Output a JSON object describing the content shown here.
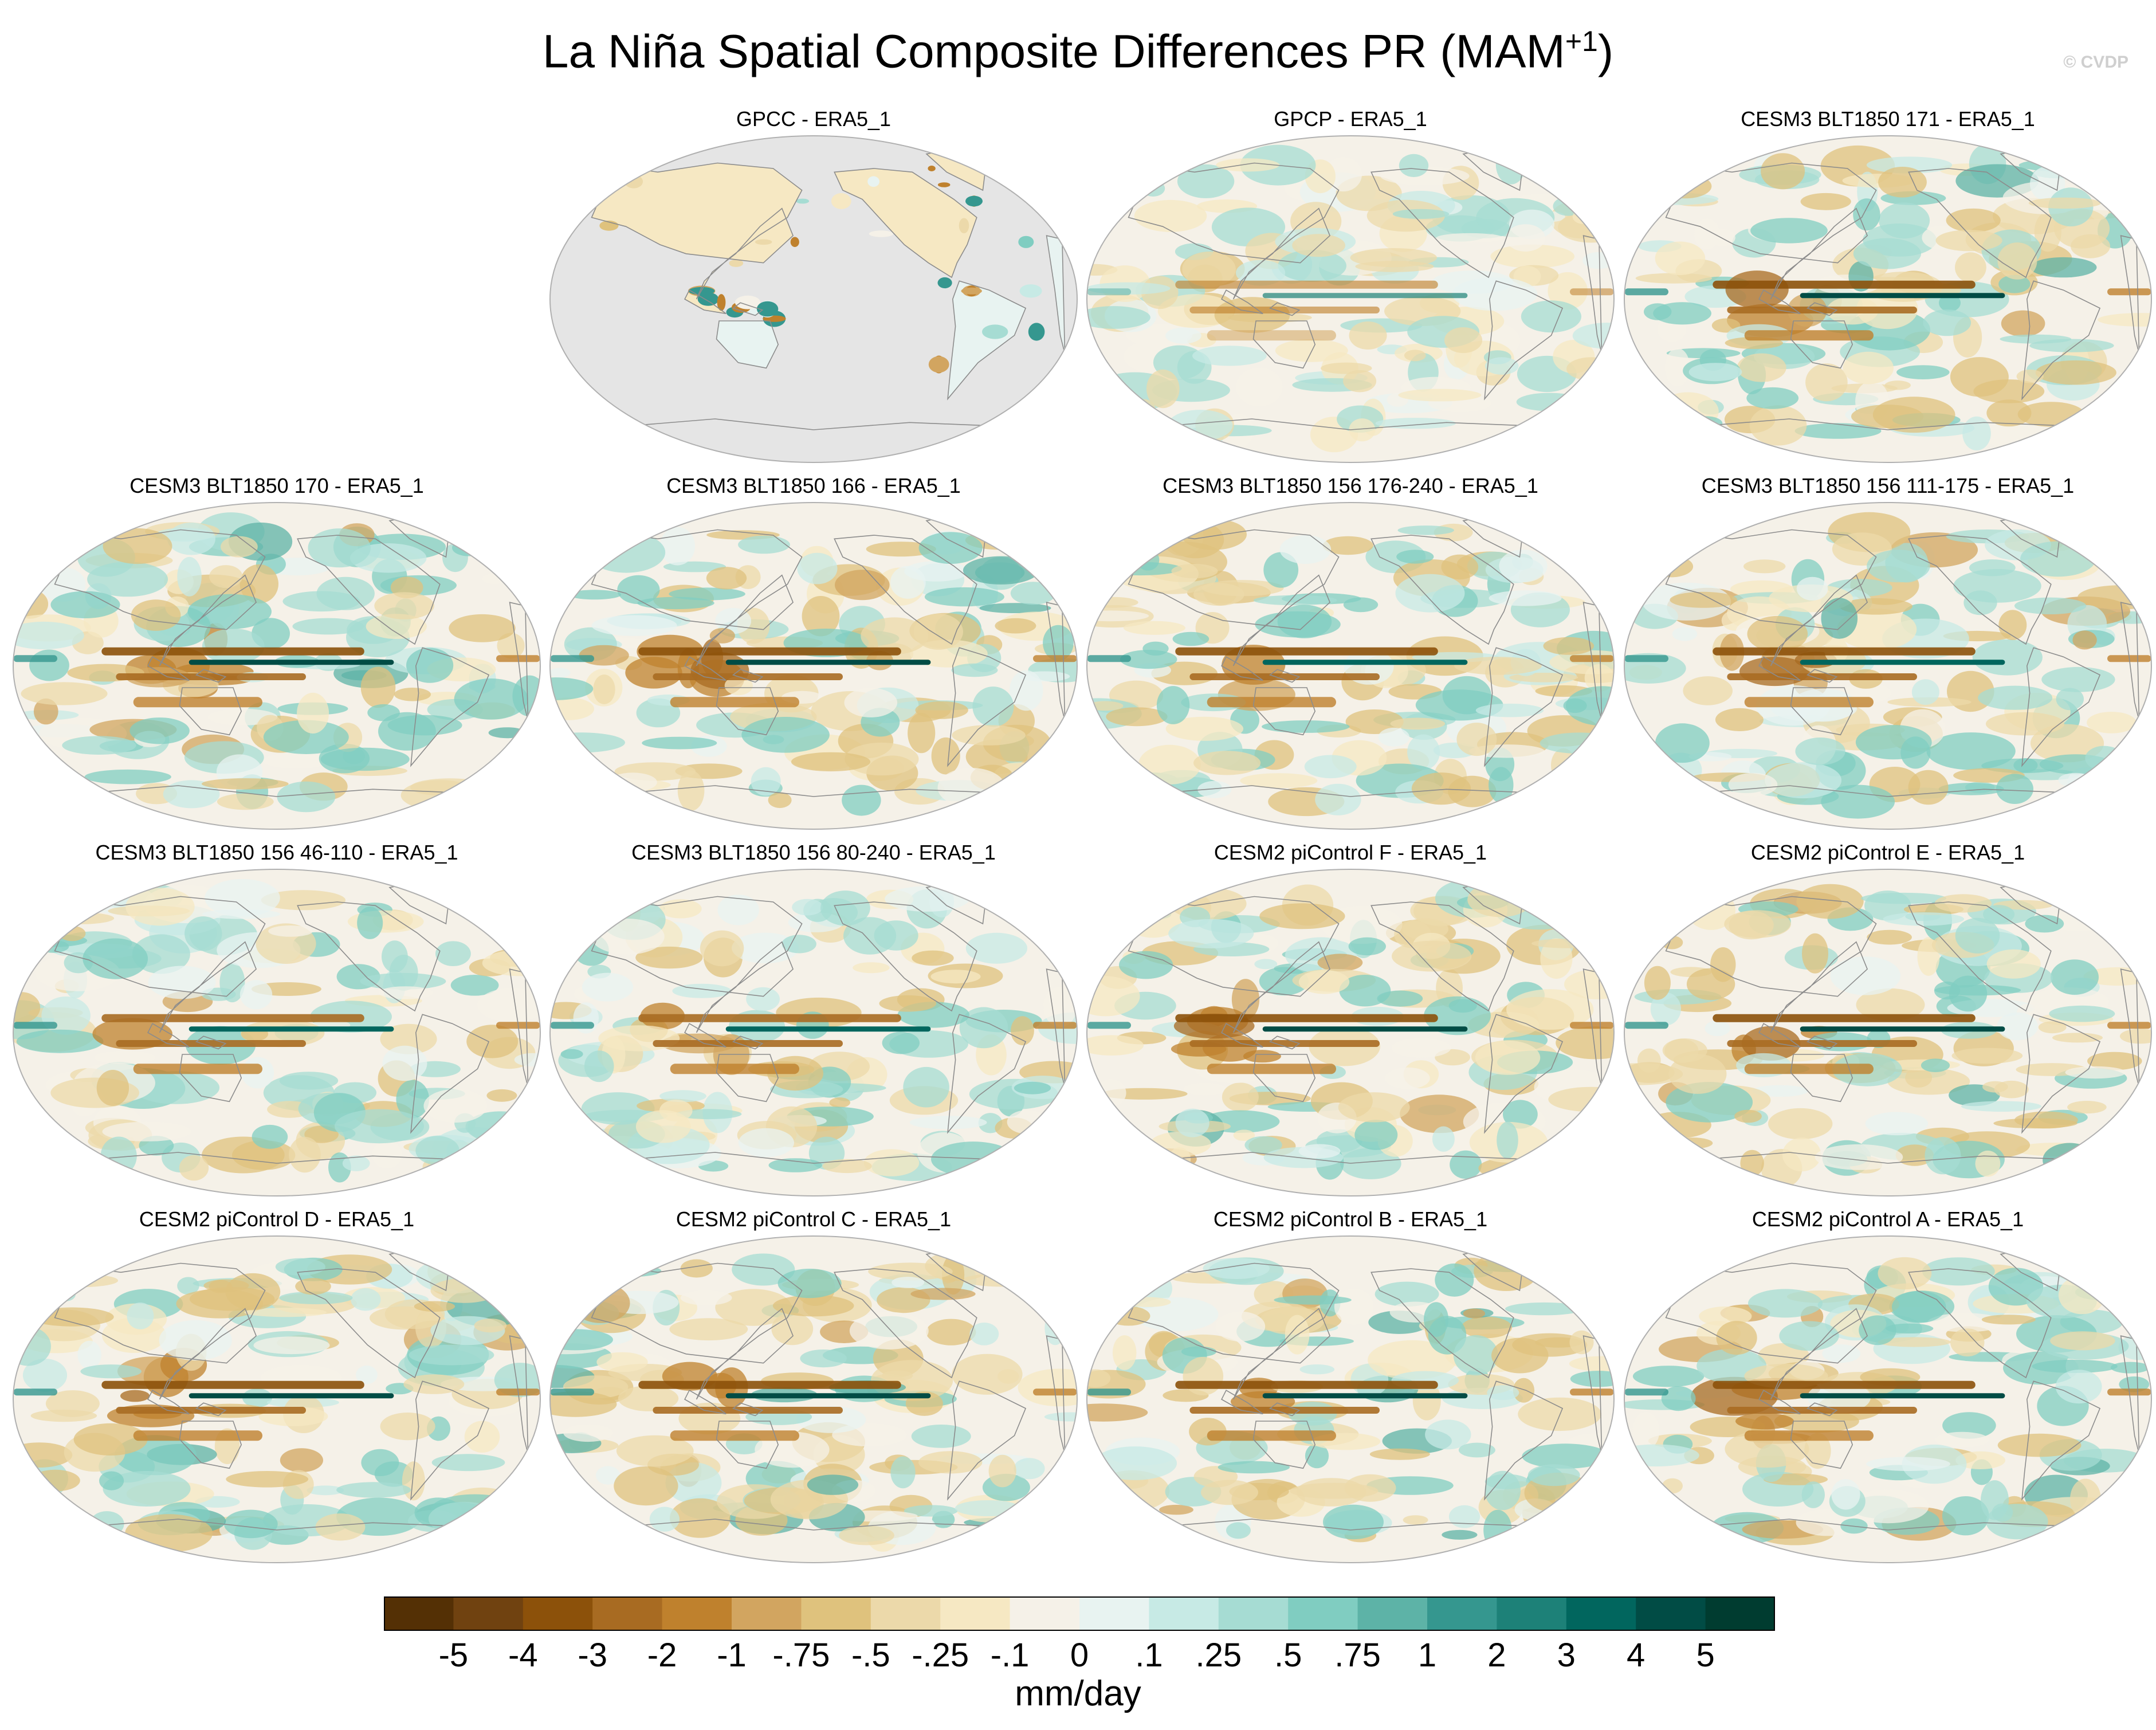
{
  "title": {
    "main": "La Niña Spatial Composite Differences PR (MAM",
    "sup": "+1",
    "close": ")"
  },
  "watermark": "© CVDP",
  "panels": [
    {
      "label": "GPCC - ERA5_1",
      "land_only": true,
      "strength": 0.55
    },
    {
      "label": "GPCP - ERA5_1",
      "land_only": false,
      "strength": 0.6
    },
    {
      "label": "CESM3 BLT1850 171 - ERA5_1",
      "land_only": false,
      "strength": 1.0
    },
    {
      "label": "CESM3 BLT1850 170 - ERA5_1",
      "land_only": false,
      "strength": 1.0
    },
    {
      "label": "CESM3 BLT1850 166 - ERA5_1",
      "land_only": false,
      "strength": 1.0
    },
    {
      "label": "CESM3 BLT1850 156 176-240 - ERA5_1",
      "land_only": false,
      "strength": 0.95
    },
    {
      "label": "CESM3 BLT1850 156 111-175 - ERA5_1",
      "land_only": false,
      "strength": 0.95
    },
    {
      "label": "CESM3 BLT1850 156 46-110 - ERA5_1",
      "land_only": false,
      "strength": 0.9
    },
    {
      "label": "CESM3 BLT1850 156 80-240 - ERA5_1",
      "land_only": false,
      "strength": 0.9
    },
    {
      "label": "CESM2 piControl F - ERA5_1",
      "land_only": false,
      "strength": 1.0
    },
    {
      "label": "CESM2 piControl E - ERA5_1",
      "land_only": false,
      "strength": 1.0
    },
    {
      "label": "CESM2 piControl D - ERA5_1",
      "land_only": false,
      "strength": 1.0
    },
    {
      "label": "CESM2 piControl C - ERA5_1",
      "land_only": false,
      "strength": 1.0
    },
    {
      "label": "CESM2 piControl B - ERA5_1",
      "land_only": false,
      "strength": 1.0
    },
    {
      "label": "CESM2 piControl A - ERA5_1",
      "land_only": false,
      "strength": 1.0
    }
  ],
  "colorbar": {
    "labels": [
      "-5",
      "-4",
      "-3",
      "-2",
      "-1",
      "-.75",
      "-.5",
      "-.25",
      "-.1",
      "0",
      ".1",
      ".25",
      ".5",
      ".75",
      "1",
      "2",
      "3",
      "4",
      "5"
    ],
    "colors": [
      "#543005",
      "#704210",
      "#8c510a",
      "#a86b22",
      "#bf812d",
      "#d2a560",
      "#dfc27d",
      "#ecd9aa",
      "#f6e8c3",
      "#f5f1e8",
      "#e8f3f1",
      "#c7eae5",
      "#a6dcd3",
      "#80cdc1",
      "#5db3a7",
      "#35978f",
      "#1d8178",
      "#01665e",
      "#014c45",
      "#003c30"
    ],
    "units": "mm/day"
  },
  "colors": {
    "land_mask": "#e5e5e5",
    "coastline": "#8c8c8c",
    "map_border": "#b0b0b0"
  }
}
